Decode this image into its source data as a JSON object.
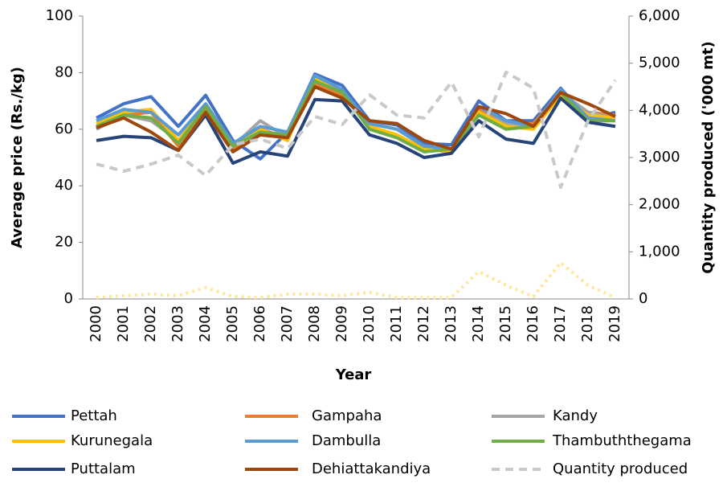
{
  "chart_data": {
    "type": "line",
    "categories": [
      "2000",
      "2001",
      "2002",
      "2003",
      "2004",
      "2005",
      "2006",
      "2007",
      "2008",
      "2009",
      "2010",
      "2011",
      "2012",
      "2013",
      "2014",
      "2015",
      "2016",
      "2017",
      "2018",
      "2019"
    ],
    "x_label": "Year",
    "y_label": "Average price (Rs./kg)",
    "y2_label": "Quantity produced ('000 mt)",
    "ylim": [
      0,
      100
    ],
    "yticks": [
      0,
      20,
      40,
      60,
      80,
      100
    ],
    "y2lim": [
      0,
      6000
    ],
    "y2ticks": [
      0,
      {
        "value": 1000,
        "label": "1,000"
      },
      {
        "value": 2000,
        "label": "2,000"
      },
      {
        "value": 3000,
        "label": "3,000"
      },
      {
        "value": 4000,
        "label": "4,000"
      },
      {
        "value": 5000,
        "label": "5,000"
      },
      {
        "value": 6000,
        "label": "6,000"
      }
    ],
    "series": [
      {
        "name": "Pettah",
        "color": "#4472c4",
        "values": [
          64,
          69,
          71.5,
          61,
          72,
          56,
          49.5,
          59,
          79.5,
          75.5,
          63,
          61.5,
          55,
          54.5,
          70,
          63,
          63,
          74.5,
          63.5,
          66
        ]
      },
      {
        "name": "Gampaha",
        "color": "#ed7d31",
        "values": [
          61,
          65,
          66,
          54,
          67,
          53,
          60,
          57,
          76,
          72,
          61,
          58,
          53,
          52,
          67,
          62,
          62,
          73,
          66,
          65
        ]
      },
      {
        "name": "Kandy",
        "color": "#a5a5a5",
        "values": [
          60,
          65,
          63,
          56,
          68,
          54,
          63,
          57,
          77,
          73,
          62,
          60,
          54,
          53,
          66,
          62,
          61,
          73,
          66,
          64
        ]
      },
      {
        "name": "Kurunegala",
        "color": "#ffc000",
        "values": [
          62,
          66,
          67,
          56,
          68,
          54,
          60,
          56,
          78,
          73,
          61,
          58,
          53,
          52,
          66,
          61,
          60,
          72,
          65,
          64
        ]
      },
      {
        "name": "Dambulla",
        "color": "#5b9bd5",
        "values": [
          63,
          67,
          66,
          58,
          69,
          55,
          61,
          59,
          79,
          74,
          62,
          60,
          54,
          53,
          68,
          63,
          61,
          74,
          64,
          63
        ]
      },
      {
        "name": "Thambuththegama",
        "color": "#70ad47",
        "values": [
          61,
          65,
          64,
          55,
          68,
          54,
          59,
          58,
          77,
          73,
          60,
          57,
          52,
          53,
          65,
          60,
          61,
          73,
          63,
          63
        ]
      },
      {
        "name": "Puttalam",
        "color": "#264478",
        "values": [
          56,
          57.5,
          57,
          52.5,
          65,
          48,
          52,
          50.5,
          70.5,
          70,
          58,
          55,
          50,
          51.5,
          63,
          56.5,
          55,
          71,
          62.5,
          61
        ]
      },
      {
        "name": "Dehiattakandiya",
        "color": "#9e480e",
        "values": [
          60.5,
          64,
          59,
          52.5,
          66,
          52,
          58,
          57,
          75,
          71,
          63,
          62,
          56,
          53,
          68,
          65.5,
          61,
          73,
          69,
          64.5
        ]
      },
      {
        "name": "Quantity produced",
        "color": "#c9c9c9",
        "axis": "y2",
        "dash": "dashed",
        "values": [
          2860,
          2710,
          2860,
          3050,
          2620,
          3270,
          3390,
          3190,
          3870,
          3700,
          4330,
          3900,
          3840,
          4600,
          3440,
          4810,
          4470,
          2370,
          3780,
          4640
        ]
      },
      {
        "color": "#ffe699",
        "axis": "y2",
        "dash": "dotted",
        "values": [
          30,
          70,
          100,
          70,
          240,
          50,
          30,
          100,
          100,
          70,
          140,
          30,
          30,
          30,
          580,
          290,
          50,
          770,
          290,
          30
        ]
      }
    ]
  }
}
